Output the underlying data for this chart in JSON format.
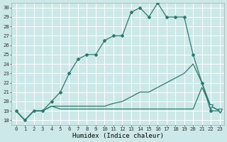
{
  "xlabel": "Humidex (Indice chaleur)",
  "bg_color": "#cce8e8",
  "line_color": "#2d7a6e",
  "grid_color": "#ffffff",
  "xlim": [
    -0.5,
    23.5
  ],
  "ylim": [
    17.5,
    30.5
  ],
  "yticks": [
    18,
    19,
    20,
    21,
    22,
    23,
    24,
    25,
    26,
    27,
    28,
    29,
    30
  ],
  "xticks": [
    0,
    1,
    2,
    3,
    4,
    5,
    6,
    7,
    8,
    9,
    10,
    11,
    12,
    13,
    14,
    15,
    16,
    17,
    18,
    19,
    20,
    21,
    22,
    23
  ],
  "main_line_x": [
    0,
    1,
    2,
    3,
    4,
    5,
    6,
    7,
    8,
    9,
    10,
    11,
    12,
    13,
    14,
    15,
    16,
    17,
    18,
    19,
    20,
    21,
    22,
    23
  ],
  "main_line_y": [
    19,
    18,
    19,
    19,
    20,
    21,
    23,
    24.5,
    25,
    25,
    26.5,
    27,
    27,
    29.5,
    30,
    29,
    30.5,
    29,
    29,
    29,
    25,
    22,
    19,
    19
  ],
  "line2_x": [
    0,
    1,
    2,
    3,
    4,
    5,
    6,
    7,
    8,
    9,
    10,
    11,
    12,
    13,
    14,
    15,
    16,
    17,
    18,
    19,
    20,
    21,
    22,
    23
  ],
  "line2_y": [
    19,
    18,
    19,
    19,
    19.5,
    19.5,
    19.5,
    19.5,
    19.5,
    19.5,
    19.5,
    19.8,
    20,
    20.5,
    21,
    21,
    21.5,
    22,
    22.5,
    23,
    24,
    22,
    19.5,
    19
  ],
  "line3_x": [
    0,
    1,
    2,
    3,
    4,
    5,
    6,
    7,
    8,
    9,
    10,
    11,
    12,
    13,
    14,
    15,
    16,
    17,
    18,
    19,
    20,
    21,
    22,
    23
  ],
  "line3_y": [
    19,
    18,
    19,
    19,
    19.5,
    19.2,
    19.2,
    19.2,
    19.2,
    19.2,
    19.2,
    19.2,
    19.2,
    19.2,
    19.2,
    19.2,
    19.2,
    19.2,
    19.2,
    19.2,
    19.2,
    21.5,
    19.5,
    19
  ],
  "triangle1_x": 23,
  "triangle1_y": 19,
  "triangle2_x": 22,
  "triangle2_y": 19.5
}
